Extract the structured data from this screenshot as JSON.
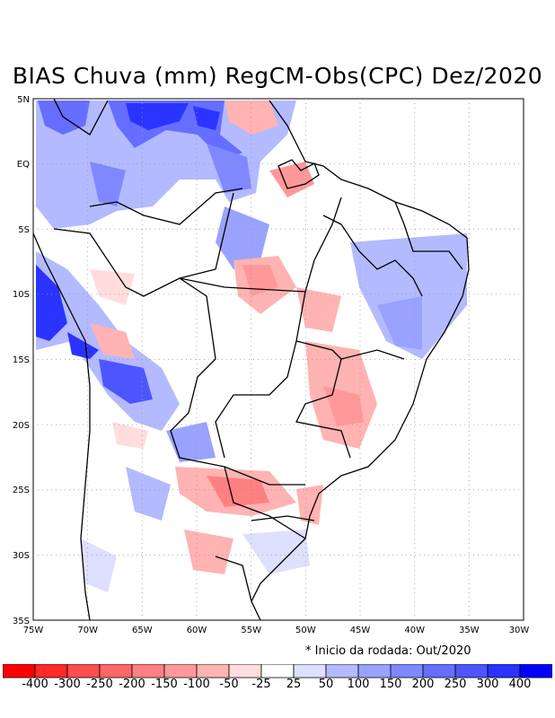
{
  "title": "BIAS Chuva (mm) RegCM-Obs(CPC) Dez/2020",
  "map": {
    "lat_labels": [
      "5N",
      "EQ",
      "5S",
      "10S",
      "15S",
      "20S",
      "25S",
      "30S",
      "35S"
    ],
    "lon_labels": [
      "75W",
      "70W",
      "65W",
      "60W",
      "55W",
      "50W",
      "45W",
      "40W",
      "35W",
      "30W"
    ],
    "lat_range": [
      -35,
      5
    ],
    "lon_range": [
      -75,
      -30
    ],
    "grid": "dotted"
  },
  "note": "* Inicio da rodada: Out/2020",
  "colorbar": {
    "colors": [
      "#ff0000",
      "#ff2a2a",
      "#ff4d4d",
      "#ff6666",
      "#ff8080",
      "#ff9999",
      "#ffb3b3",
      "#ffdddd",
      "#ffffff",
      "#dde0ff",
      "#b3baff",
      "#9aa2ff",
      "#8088ff",
      "#666eff",
      "#4d55ff",
      "#2a33ff",
      "#0000ff"
    ],
    "labels": [
      "-400",
      "-300",
      "-250",
      "-200",
      "-150",
      "-100",
      "-50",
      "-25",
      "25",
      "50",
      "100",
      "150",
      "200",
      "250",
      "300",
      "400"
    ]
  },
  "colors": {
    "dry_strong": "#ff8080",
    "dry_light": "#ffb3b3",
    "wet_light": "#b3baff",
    "wet_strong": "#4d55ff",
    "wet_extreme": "#0000ff"
  }
}
